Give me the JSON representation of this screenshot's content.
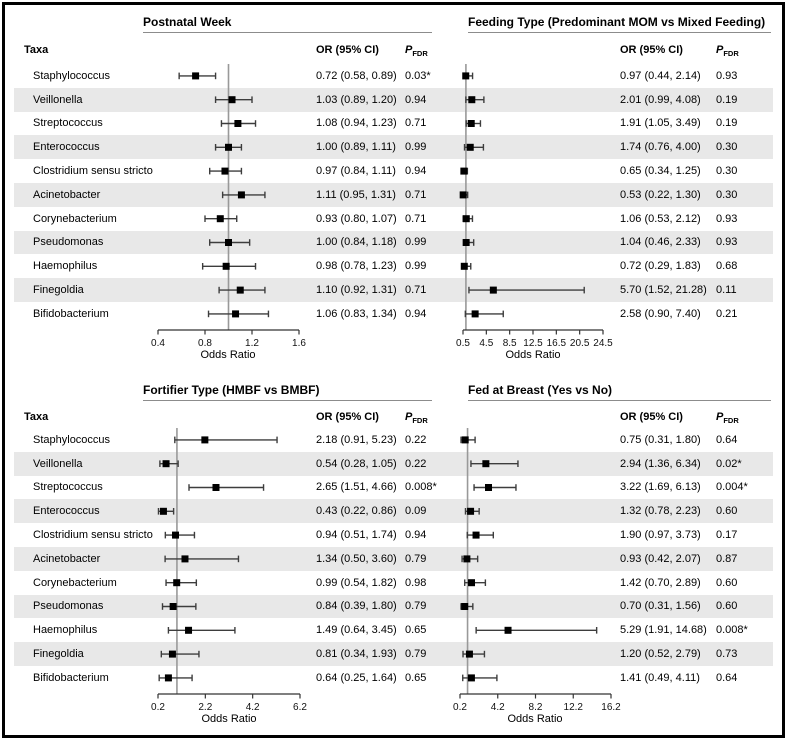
{
  "chart_data": {
    "type": "forest",
    "taxa_header": "Taxa",
    "or_header": "OR (95% CI)",
    "p_header": {
      "main": "P",
      "sub": "FDR"
    },
    "categories": [
      "Staphylococcus",
      "Veillonella",
      "Streptococcus",
      "Enterococcus",
      "Clostridium sensu stricto",
      "Acinetobacter",
      "Corynebacterium",
      "Pseudomonas",
      "Haemophilus",
      "Finegoldia",
      "Bifidobacterium"
    ],
    "panels": [
      {
        "title": "Postnatal Week",
        "xlabel": "Odds Ratio",
        "xlim": [
          0.4,
          1.6
        ],
        "ticks": [
          0.4,
          0.8,
          1.2,
          1.6
        ],
        "ref_line": 1.0,
        "rows": [
          {
            "or": 0.72,
            "ci": [
              0.58,
              0.89
            ],
            "or_text": "0.72 (0.58, 0.89)",
            "p_fdr": "0.03*"
          },
          {
            "or": 1.03,
            "ci": [
              0.89,
              1.2
            ],
            "or_text": "1.03 (0.89, 1.20)",
            "p_fdr": "0.94"
          },
          {
            "or": 1.08,
            "ci": [
              0.94,
              1.23
            ],
            "or_text": "1.08 (0.94, 1.23)",
            "p_fdr": "0.71"
          },
          {
            "or": 1.0,
            "ci": [
              0.89,
              1.11
            ],
            "or_text": "1.00 (0.89, 1.11)",
            "p_fdr": "0.99"
          },
          {
            "or": 0.97,
            "ci": [
              0.84,
              1.11
            ],
            "or_text": "0.97 (0.84, 1.11)",
            "p_fdr": "0.94"
          },
          {
            "or": 1.11,
            "ci": [
              0.95,
              1.31
            ],
            "or_text": "1.11 (0.95, 1.31)",
            "p_fdr": "0.71"
          },
          {
            "or": 0.93,
            "ci": [
              0.8,
              1.07
            ],
            "or_text": "0.93 (0.80, 1.07)",
            "p_fdr": "0.71"
          },
          {
            "or": 1.0,
            "ci": [
              0.84,
              1.18
            ],
            "or_text": "1.00 (0.84, 1.18)",
            "p_fdr": "0.99"
          },
          {
            "or": 0.98,
            "ci": [
              0.78,
              1.23
            ],
            "or_text": "0.98 (0.78, 1.23)",
            "p_fdr": "0.99"
          },
          {
            "or": 1.1,
            "ci": [
              0.92,
              1.31
            ],
            "or_text": "1.10 (0.92, 1.31)",
            "p_fdr": "0.71"
          },
          {
            "or": 1.06,
            "ci": [
              0.83,
              1.34
            ],
            "or_text": "1.06 (0.83, 1.34)",
            "p_fdr": "0.94"
          }
        ]
      },
      {
        "title": "Feeding Type (Predominant MOM vs Mixed Feeding)",
        "xlabel": "Odds Ratio",
        "xlim": [
          0.5,
          24.5
        ],
        "ticks": [
          0.5,
          4.5,
          8.5,
          12.5,
          16.5,
          20.5,
          24.5
        ],
        "ref_line": 1.0,
        "rows": [
          {
            "or": 0.97,
            "ci": [
              0.44,
              2.14
            ],
            "or_text": "0.97 (0.44, 2.14)",
            "p_fdr": "0.93"
          },
          {
            "or": 2.01,
            "ci": [
              0.99,
              4.08
            ],
            "or_text": "2.01 (0.99, 4.08)",
            "p_fdr": "0.19"
          },
          {
            "or": 1.91,
            "ci": [
              1.05,
              3.49
            ],
            "or_text": "1.91 (1.05, 3.49)",
            "p_fdr": "0.19"
          },
          {
            "or": 1.74,
            "ci": [
              0.76,
              4.0
            ],
            "or_text": "1.74 (0.76, 4.00)",
            "p_fdr": "0.30"
          },
          {
            "or": 0.65,
            "ci": [
              0.34,
              1.25
            ],
            "or_text": "0.65 (0.34, 1.25)",
            "p_fdr": "0.30"
          },
          {
            "or": 0.53,
            "ci": [
              0.22,
              1.3
            ],
            "or_text": "0.53 (0.22, 1.30)",
            "p_fdr": "0.30"
          },
          {
            "or": 1.06,
            "ci": [
              0.53,
              2.12
            ],
            "or_text": "1.06 (0.53, 2.12)",
            "p_fdr": "0.93"
          },
          {
            "or": 1.04,
            "ci": [
              0.46,
              2.33
            ],
            "or_text": "1.04 (0.46, 2.33)",
            "p_fdr": "0.93"
          },
          {
            "or": 0.72,
            "ci": [
              0.29,
              1.83
            ],
            "or_text": "0.72 (0.29, 1.83)",
            "p_fdr": "0.68"
          },
          {
            "or": 5.7,
            "ci": [
              1.52,
              21.28
            ],
            "or_text": "5.70 (1.52, 21.28)",
            "p_fdr": "0.11"
          },
          {
            "or": 2.58,
            "ci": [
              0.9,
              7.4
            ],
            "or_text": "2.58 (0.90, 7.40)",
            "p_fdr": "0.21"
          }
        ]
      },
      {
        "title": "Fortifier Type (HMBF vs BMBF)",
        "xlabel": "Odds Ratio",
        "xlim": [
          0.2,
          6.2
        ],
        "ticks": [
          0.2,
          2.2,
          4.2,
          6.2
        ],
        "ref_line": 1.0,
        "rows": [
          {
            "or": 2.18,
            "ci": [
              0.91,
              5.23
            ],
            "or_text": "2.18 (0.91, 5.23)",
            "p_fdr": "0.22"
          },
          {
            "or": 0.54,
            "ci": [
              0.28,
              1.05
            ],
            "or_text": "0.54 (0.28, 1.05)",
            "p_fdr": "0.22"
          },
          {
            "or": 2.65,
            "ci": [
              1.51,
              4.66
            ],
            "or_text": "2.65 (1.51, 4.66)",
            "p_fdr": "0.008*"
          },
          {
            "or": 0.43,
            "ci": [
              0.22,
              0.86
            ],
            "or_text": "0.43 (0.22, 0.86)",
            "p_fdr": "0.09"
          },
          {
            "or": 0.94,
            "ci": [
              0.51,
              1.74
            ],
            "or_text": "0.94 (0.51, 1.74)",
            "p_fdr": "0.94"
          },
          {
            "or": 1.34,
            "ci": [
              0.5,
              3.6
            ],
            "or_text": "1.34 (0.50, 3.60)",
            "p_fdr": "0.79"
          },
          {
            "or": 0.99,
            "ci": [
              0.54,
              1.82
            ],
            "or_text": "0.99 (0.54, 1.82)",
            "p_fdr": "0.98"
          },
          {
            "or": 0.84,
            "ci": [
              0.39,
              1.8
            ],
            "or_text": "0.84 (0.39, 1.80)",
            "p_fdr": "0.79"
          },
          {
            "or": 1.49,
            "ci": [
              0.64,
              3.45
            ],
            "or_text": "1.49 (0.64, 3.45)",
            "p_fdr": "0.65"
          },
          {
            "or": 0.81,
            "ci": [
              0.34,
              1.93
            ],
            "or_text": "0.81 (0.34, 1.93)",
            "p_fdr": "0.79"
          },
          {
            "or": 0.64,
            "ci": [
              0.25,
              1.64
            ],
            "or_text": "0.64 (0.25, 1.64)",
            "p_fdr": "0.65"
          }
        ]
      },
      {
        "title": "Fed at Breast (Yes vs No)",
        "xlabel": "Odds Ratio",
        "xlim": [
          0.2,
          16.2
        ],
        "ticks": [
          0.2,
          4.2,
          8.2,
          12.2,
          16.2
        ],
        "ref_line": 1.0,
        "rows": [
          {
            "or": 0.75,
            "ci": [
              0.31,
              1.8
            ],
            "or_text": "0.75 (0.31, 1.80)",
            "p_fdr": "0.64"
          },
          {
            "or": 2.94,
            "ci": [
              1.36,
              6.34
            ],
            "or_text": "2.94 (1.36, 6.34)",
            "p_fdr": "0.02*"
          },
          {
            "or": 3.22,
            "ci": [
              1.69,
              6.13
            ],
            "or_text": "3.22 (1.69, 6.13)",
            "p_fdr": "0.004*"
          },
          {
            "or": 1.32,
            "ci": [
              0.78,
              2.23
            ],
            "or_text": "1.32 (0.78, 2.23)",
            "p_fdr": "0.60"
          },
          {
            "or": 1.9,
            "ci": [
              0.97,
              3.73
            ],
            "or_text": "1.90 (0.97, 3.73)",
            "p_fdr": "0.17"
          },
          {
            "or": 0.93,
            "ci": [
              0.42,
              2.07
            ],
            "or_text": "0.93 (0.42, 2.07)",
            "p_fdr": "0.87"
          },
          {
            "or": 1.42,
            "ci": [
              0.7,
              2.89
            ],
            "or_text": "1.42 (0.70, 2.89)",
            "p_fdr": "0.60"
          },
          {
            "or": 0.7,
            "ci": [
              0.31,
              1.56
            ],
            "or_text": "0.70 (0.31, 1.56)",
            "p_fdr": "0.60"
          },
          {
            "or": 5.29,
            "ci": [
              1.91,
              14.68
            ],
            "or_text": "5.29 (1.91, 14.68)",
            "p_fdr": "0.008*"
          },
          {
            "or": 1.2,
            "ci": [
              0.52,
              2.79
            ],
            "or_text": "1.20 (0.52, 2.79)",
            "p_fdr": "0.73"
          },
          {
            "or": 1.41,
            "ci": [
              0.49,
              4.11
            ],
            "or_text": "1.41 (0.49, 4.11)",
            "p_fdr": "0.64"
          }
        ]
      }
    ]
  },
  "colors": {
    "row_shading": "#e8e8e8",
    "marker": "#000000",
    "ci_line": "#3d3d3d",
    "axis_line": "#333333",
    "ref_line": "#999999",
    "border": "#000000"
  }
}
